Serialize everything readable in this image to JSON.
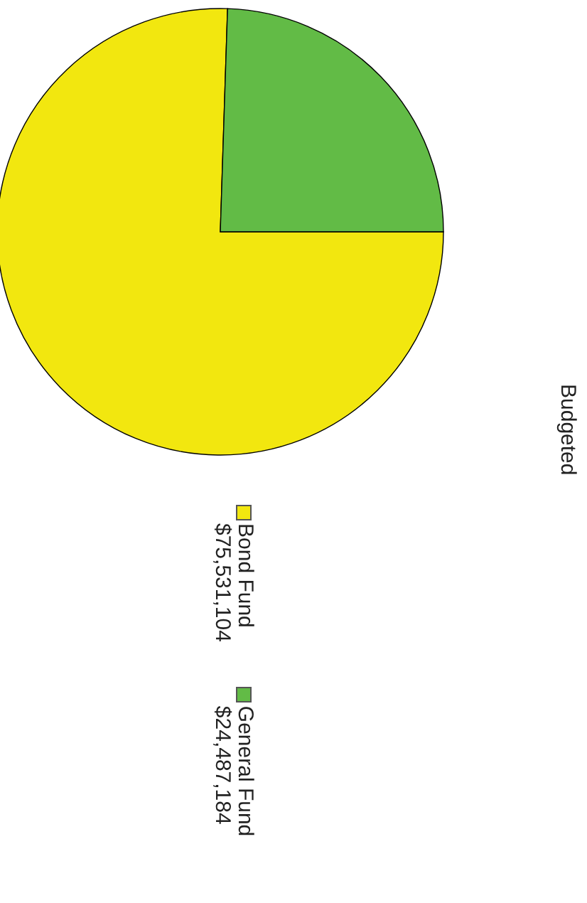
{
  "chart_data": {
    "type": "pie",
    "title": "Budgeted",
    "categories": [
      "Bond Fund",
      "General Fund"
    ],
    "values": [
      75531104,
      24487184
    ],
    "colors": [
      "#f2e70f",
      "#62bb46"
    ],
    "value_labels": [
      "$75,531,104",
      "$24,487,184"
    ],
    "legend": "bottom"
  }
}
